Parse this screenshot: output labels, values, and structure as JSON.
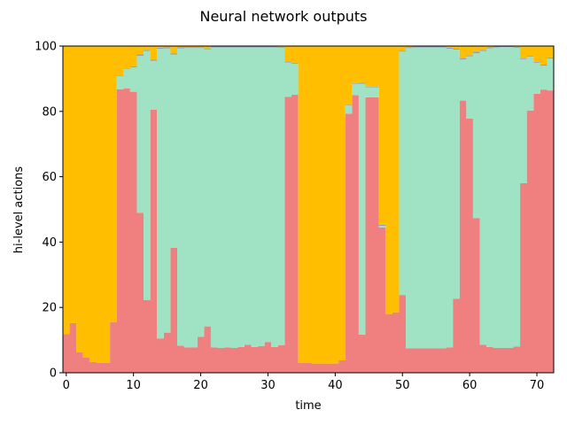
{
  "chart_data": {
    "type": "area",
    "title": "Neural network outputs",
    "xlabel": "time",
    "ylabel": "hi-level actions",
    "xlim": [
      -0.5,
      72.5
    ],
    "ylim": [
      0,
      100
    ],
    "xticks": [
      0,
      10,
      20,
      30,
      40,
      50,
      60,
      70
    ],
    "yticks": [
      0,
      20,
      40,
      60,
      80,
      100
    ],
    "grid": false,
    "legend": "none",
    "step": true,
    "x": [
      0,
      1,
      2,
      3,
      4,
      5,
      6,
      7,
      8,
      9,
      10,
      11,
      12,
      13,
      14,
      15,
      16,
      17,
      18,
      19,
      20,
      21,
      22,
      23,
      24,
      25,
      26,
      27,
      28,
      29,
      30,
      31,
      32,
      33,
      34,
      35,
      36,
      37,
      38,
      39,
      40,
      41,
      42,
      43,
      44,
      45,
      46,
      47,
      48,
      49,
      50,
      51,
      52,
      53,
      54,
      55,
      56,
      57,
      58,
      59,
      60,
      61,
      62,
      63,
      64,
      65,
      66,
      67,
      68,
      69,
      70,
      71,
      72
    ],
    "series": [
      {
        "color": "#f08080",
        "values": [
          11.8,
          15.2,
          6.3,
          4.6,
          3.3,
          3.0,
          3.0,
          15.5,
          86.8,
          87.0,
          86.0,
          49.0,
          22.3,
          80.5,
          10.5,
          12.3,
          38.2,
          8.3,
          7.8,
          7.8,
          11.0,
          14.2,
          7.8,
          7.6,
          7.8,
          7.6,
          7.9,
          8.6,
          7.9,
          8.2,
          9.4,
          7.9,
          8.4,
          84.5,
          85.1,
          3.0,
          3.0,
          2.8,
          2.8,
          2.8,
          2.8,
          3.8,
          79.3,
          85.0,
          11.7,
          84.3,
          84.3,
          44.5,
          18.0,
          18.5,
          23.8,
          7.5,
          7.5,
          7.5,
          7.5,
          7.5,
          7.5,
          7.8,
          22.7,
          83.3,
          77.8,
          47.3,
          8.6,
          7.9,
          7.6,
          7.6,
          7.6,
          8.0,
          58.0,
          80.3,
          85.4,
          86.7,
          86.4
        ]
      },
      {
        "color": "#a0e2c4",
        "values": [
          0,
          0,
          0,
          0,
          0,
          0,
          0,
          0,
          4.0,
          6.0,
          7.5,
          48.0,
          76.2,
          15.0,
          88.7,
          87.0,
          59.2,
          91.0,
          91.6,
          91.6,
          88.4,
          84.8,
          91.8,
          92.0,
          91.8,
          92.0,
          91.7,
          91.0,
          91.7,
          91.4,
          90.2,
          91.7,
          91.1,
          10.5,
          9.5,
          0,
          0,
          0,
          0,
          0,
          0,
          0,
          2.5,
          3.5,
          76.8,
          3.1,
          3.1,
          0.5,
          0,
          0,
          74.5,
          91.9,
          92.1,
          92.1,
          92.1,
          92.1,
          92.1,
          91.4,
          76.2,
          12.6,
          19.1,
          50.5,
          89.9,
          91.4,
          92.0,
          92.1,
          92.1,
          91.5,
          38.0,
          16.4,
          9.5,
          7.3,
          9.8
        ]
      },
      {
        "color": "#8e9fc5",
        "values": [
          0,
          0,
          0,
          0,
          0,
          0,
          0,
          0,
          0.2,
          0.2,
          0.3,
          0.5,
          0.3,
          0.3,
          0.3,
          0.3,
          0.3,
          0.3,
          0.3,
          0.3,
          0.3,
          0.3,
          0.3,
          0.3,
          0.3,
          0.3,
          0.3,
          0.3,
          0.3,
          0.3,
          0.3,
          0.3,
          0.3,
          0.3,
          0.3,
          0,
          0,
          0,
          0,
          0,
          0,
          0,
          0.2,
          0.2,
          0.3,
          0.2,
          0.2,
          0.3,
          0,
          0,
          0.3,
          0.3,
          0.3,
          0.3,
          0.3,
          0.3,
          0.3,
          0.3,
          0.3,
          0.3,
          0.3,
          0.5,
          0.3,
          0.3,
          0.3,
          0.3,
          0.3,
          0.3,
          0.3,
          0.3,
          0.3,
          0.3,
          0.3
        ]
      },
      {
        "color": "#ffbf00",
        "values": [
          88.2,
          84.8,
          93.7,
          95.4,
          96.7,
          97.0,
          97.0,
          84.5,
          9.0,
          6.8,
          6.2,
          2.5,
          1.2,
          4.2,
          0.5,
          0.4,
          2.3,
          0.4,
          0.3,
          0.3,
          0.3,
          0.7,
          0.1,
          0.1,
          0.1,
          0.1,
          0.1,
          0.1,
          0.1,
          0.1,
          0.1,
          0.1,
          0.2,
          4.7,
          5.1,
          97.0,
          97.0,
          97.2,
          97.2,
          97.2,
          97.2,
          96.2,
          18.0,
          11.3,
          11.2,
          12.4,
          12.4,
          54.7,
          82.0,
          81.5,
          1.4,
          0.3,
          0.1,
          0.1,
          0.1,
          0.1,
          0.1,
          0.5,
          0.8,
          3.8,
          2.8,
          1.7,
          1.2,
          0.4,
          0.1,
          0.0,
          0.0,
          0.2,
          3.7,
          3.0,
          4.8,
          5.7,
          3.5
        ]
      }
    ]
  }
}
